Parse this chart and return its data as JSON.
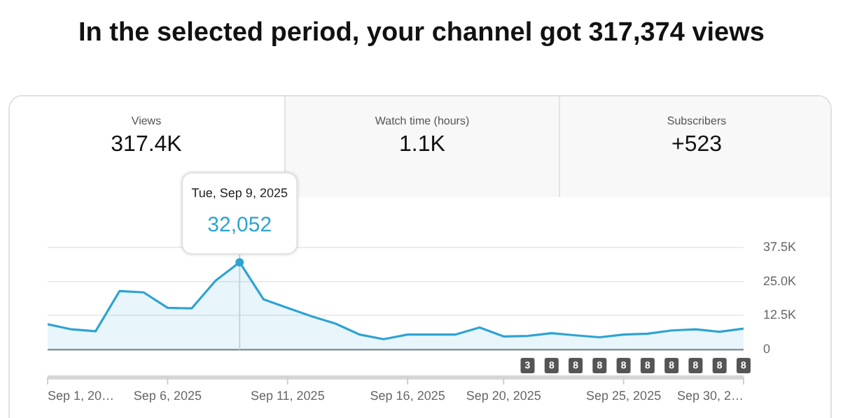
{
  "chart_data": {
    "type": "area",
    "title": "In the selected period, your channel got 317,374 views",
    "x": [
      "2025-09-01",
      "2025-09-02",
      "2025-09-03",
      "2025-09-04",
      "2025-09-05",
      "2025-09-06",
      "2025-09-07",
      "2025-09-08",
      "2025-09-09",
      "2025-09-10",
      "2025-09-11",
      "2025-09-12",
      "2025-09-13",
      "2025-09-14",
      "2025-09-15",
      "2025-09-16",
      "2025-09-17",
      "2025-09-18",
      "2025-09-19",
      "2025-09-20",
      "2025-09-21",
      "2025-09-22",
      "2025-09-23",
      "2025-09-24",
      "2025-09-25",
      "2025-09-26",
      "2025-09-27",
      "2025-09-28",
      "2025-09-29",
      "2025-09-30"
    ],
    "series": [
      {
        "color": "#2ea3d3",
        "values": [
          9300,
          7400,
          6700,
          21500,
          21000,
          15300,
          15100,
          25300,
          32052,
          18400,
          15300,
          12200,
          9500,
          5500,
          3800,
          5500,
          5500,
          5500,
          8100,
          4800,
          5000,
          6000,
          5200,
          4500,
          5500,
          5800,
          7000,
          7400,
          6500,
          7700
        ]
      }
    ],
    "xlim": [
      "2025-09-01",
      "2025-09-30"
    ],
    "xticks": [
      {
        "value": "2025-09-01",
        "label": "Sep 1, 20…"
      },
      {
        "value": "2025-09-06",
        "label": "Sep 6, 2025"
      },
      {
        "value": "2025-09-11",
        "label": "Sep 11, 2025"
      },
      {
        "value": "2025-09-16",
        "label": "Sep 16, 2025"
      },
      {
        "value": "2025-09-20",
        "label": "Sep 20, 2025"
      },
      {
        "value": "2025-09-25",
        "label": "Sep 25, 2025"
      },
      {
        "value": "2025-09-30",
        "label": "Sep 30, 2…"
      }
    ],
    "ylim": [
      0,
      37500
    ],
    "yticks": [
      0,
      {
        "value": 12500,
        "label": "12.5K"
      },
      {
        "value": 25000,
        "label": "25.0K"
      },
      {
        "value": 37500,
        "label": "37.5K"
      }
    ],
    "grid": "y",
    "marker": "none",
    "line_style": "solid",
    "annotations": [
      "Views",
      "317.4K",
      "Watch time (hours)",
      "1.1K",
      "Subscribers",
      "+523",
      "Tue, Sep 9, 2025",
      {
        "text": "32,052",
        "x": "2025-09-09",
        "y": 32052
      },
      "3",
      "8",
      "8",
      "8",
      "8",
      "8",
      "8",
      "8",
      "8",
      "8"
    ],
    "ref_lines": [
      {
        "axis": "x",
        "value": "2025-09-09",
        "color": "#c8d3da"
      }
    ]
  }
}
